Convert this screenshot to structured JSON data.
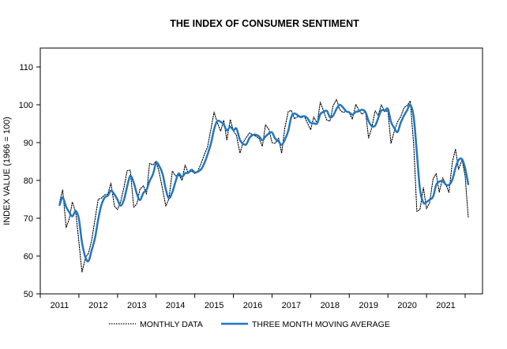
{
  "chart_data": {
    "type": "line",
    "title": "THE INDEX OF CONSUMER SENTIMENT",
    "ylabel": "INDEX VALUE (1966 = 100)",
    "xlabel": "",
    "ylim": [
      50,
      115
    ],
    "xlim": [
      2010.5,
      2021.95
    ],
    "yticks": [
      50,
      60,
      70,
      80,
      90,
      100,
      110
    ],
    "xticks": [
      "2011",
      "2012",
      "2013",
      "2014",
      "2015",
      "2016",
      "2017",
      "2018",
      "2019",
      "2020",
      "2021"
    ],
    "grid": false,
    "legend_position": "bottom",
    "series": [
      {
        "name": "MONTHLY DATA",
        "style": "dotted",
        "color": "#000000",
        "x": [
          2011.0,
          2011.08,
          2011.17,
          2011.25,
          2011.33,
          2011.42,
          2011.5,
          2011.58,
          2011.67,
          2011.75,
          2011.83,
          2011.92,
          2012.0,
          2012.08,
          2012.17,
          2012.25,
          2012.33,
          2012.42,
          2012.5,
          2012.58,
          2012.67,
          2012.75,
          2012.83,
          2012.92,
          2013.0,
          2013.08,
          2013.17,
          2013.25,
          2013.33,
          2013.42,
          2013.5,
          2013.58,
          2013.67,
          2013.75,
          2013.83,
          2013.92,
          2014.0,
          2014.08,
          2014.17,
          2014.25,
          2014.33,
          2014.42,
          2014.5,
          2014.58,
          2014.67,
          2014.75,
          2014.83,
          2014.92,
          2015.0,
          2015.08,
          2015.17,
          2015.25,
          2015.33,
          2015.42,
          2015.5,
          2015.58,
          2015.67,
          2015.75,
          2015.83,
          2015.92,
          2016.0,
          2016.08,
          2016.17,
          2016.25,
          2016.33,
          2016.42,
          2016.5,
          2016.58,
          2016.67,
          2016.75,
          2016.83,
          2016.92,
          2017.0,
          2017.08,
          2017.17,
          2017.25,
          2017.33,
          2017.42,
          2017.5,
          2017.58,
          2017.67,
          2017.75,
          2017.83,
          2017.92,
          2018.0,
          2018.08,
          2018.17,
          2018.25,
          2018.33,
          2018.42,
          2018.5,
          2018.58,
          2018.67,
          2018.75,
          2018.83,
          2018.92,
          2019.0,
          2019.08,
          2019.17,
          2019.25,
          2019.33,
          2019.42,
          2019.5,
          2019.58,
          2019.67,
          2019.75,
          2019.83,
          2019.92,
          2020.0,
          2020.08,
          2020.17,
          2020.25,
          2020.33,
          2020.42,
          2020.5,
          2020.58,
          2020.67,
          2020.75,
          2020.83,
          2020.92,
          2021.0,
          2021.08,
          2021.17,
          2021.25,
          2021.33,
          2021.42,
          2021.5,
          2021.58
        ],
        "values": [
          74.2,
          77.5,
          67.5,
          69.8,
          74.3,
          71.5,
          63.7,
          55.7,
          59.5,
          60.8,
          64.1,
          69.9,
          75.0,
          75.3,
          76.2,
          76.4,
          79.3,
          73.2,
          72.3,
          74.3,
          78.3,
          82.6,
          82.7,
          72.9,
          73.8,
          77.6,
          78.6,
          76.4,
          84.5,
          84.1,
          85.1,
          82.1,
          77.5,
          73.2,
          75.1,
          82.5,
          81.2,
          81.6,
          80.0,
          84.1,
          81.9,
          82.5,
          81.8,
          82.5,
          84.6,
          86.9,
          88.8,
          93.6,
          98.1,
          95.4,
          93.0,
          95.9,
          90.7,
          96.1,
          93.1,
          91.9,
          87.2,
          90.0,
          91.3,
          92.6,
          92.0,
          91.7,
          91.0,
          89.0,
          94.7,
          93.5,
          90.0,
          89.8,
          91.2,
          87.2,
          93.8,
          98.2,
          98.5,
          96.3,
          96.9,
          97.0,
          97.1,
          95.1,
          93.4,
          96.8,
          95.1,
          100.7,
          98.5,
          95.9,
          95.7,
          99.7,
          101.4,
          98.8,
          98.0,
          98.2,
          97.9,
          96.2,
          100.1,
          98.6,
          97.5,
          98.3,
          91.2,
          93.8,
          98.4,
          97.2,
          100.0,
          98.2,
          98.4,
          89.8,
          93.2,
          95.5,
          96.8,
          99.3,
          99.8,
          101.0,
          89.1,
          71.8,
          72.3,
          78.1,
          72.5,
          74.1,
          80.4,
          81.8,
          76.9,
          80.7,
          79.0,
          76.8,
          84.9,
          88.3,
          82.9,
          85.5,
          81.2,
          70.3
        ]
      },
      {
        "name": "THREE MONTH MOVING AVERAGE",
        "style": "solid",
        "color": "#1f77c4",
        "x": [
          2011.0,
          2011.08,
          2011.17,
          2011.25,
          2011.33,
          2011.42,
          2011.5,
          2011.58,
          2011.67,
          2011.75,
          2011.83,
          2011.92,
          2012.0,
          2012.08,
          2012.17,
          2012.25,
          2012.33,
          2012.42,
          2012.5,
          2012.58,
          2012.67,
          2012.75,
          2012.83,
          2012.92,
          2013.0,
          2013.08,
          2013.17,
          2013.25,
          2013.33,
          2013.42,
          2013.5,
          2013.58,
          2013.67,
          2013.75,
          2013.83,
          2013.92,
          2014.0,
          2014.08,
          2014.17,
          2014.25,
          2014.33,
          2014.42,
          2014.5,
          2014.58,
          2014.67,
          2014.75,
          2014.83,
          2014.92,
          2015.0,
          2015.08,
          2015.17,
          2015.25,
          2015.33,
          2015.42,
          2015.5,
          2015.58,
          2015.67,
          2015.75,
          2015.83,
          2015.92,
          2016.0,
          2016.08,
          2016.17,
          2016.25,
          2016.33,
          2016.42,
          2016.5,
          2016.58,
          2016.67,
          2016.75,
          2016.83,
          2016.92,
          2017.0,
          2017.08,
          2017.17,
          2017.25,
          2017.33,
          2017.42,
          2017.5,
          2017.58,
          2017.67,
          2017.75,
          2017.83,
          2017.92,
          2018.0,
          2018.08,
          2018.17,
          2018.25,
          2018.33,
          2018.42,
          2018.5,
          2018.58,
          2018.67,
          2018.75,
          2018.83,
          2018.92,
          2019.0,
          2019.08,
          2019.17,
          2019.25,
          2019.33,
          2019.42,
          2019.5,
          2019.58,
          2019.67,
          2019.75,
          2019.83,
          2019.92,
          2020.0,
          2020.08,
          2020.17,
          2020.25,
          2020.33,
          2020.42,
          2020.5,
          2020.58,
          2020.67,
          2020.75,
          2020.83,
          2020.92,
          2021.0,
          2021.08,
          2021.17,
          2021.25,
          2021.33,
          2021.42,
          2021.5,
          2021.58
        ],
        "values": [
          73.5,
          75.5,
          73.0,
          71.6,
          70.5,
          71.9,
          69.8,
          63.6,
          59.6,
          58.7,
          61.5,
          64.9,
          69.7,
          73.4,
          75.5,
          76.0,
          77.3,
          76.3,
          74.9,
          73.3,
          75.0,
          78.4,
          81.2,
          79.4,
          76.5,
          74.8,
          76.7,
          77.5,
          79.8,
          81.7,
          84.6,
          83.8,
          81.6,
          77.6,
          75.3,
          76.9,
          79.6,
          81.8,
          80.9,
          81.9,
          82.0,
          82.8,
          82.1,
          82.3,
          83.0,
          84.6,
          86.8,
          89.8,
          93.5,
          95.7,
          95.5,
          94.8,
          93.2,
          94.2,
          93.3,
          93.7,
          90.7,
          89.7,
          89.5,
          91.3,
          92.0,
          92.1,
          91.6,
          90.6,
          91.6,
          92.4,
          92.7,
          91.1,
          90.3,
          89.4,
          90.7,
          93.1,
          96.8,
          97.7,
          97.2,
          96.7,
          97.0,
          96.4,
          95.2,
          95.1,
          95.1,
          97.5,
          98.1,
          98.4,
          96.7,
          97.1,
          98.9,
          100.0,
          99.4,
          98.3,
          98.0,
          97.4,
          98.1,
          98.3,
          98.7,
          98.1,
          95.7,
          94.4,
          94.5,
          96.5,
          98.5,
          98.5,
          98.9,
          95.5,
          93.8,
          92.8,
          95.2,
          97.2,
          98.6,
          100.0,
          96.6,
          87.3,
          77.7,
          74.1,
          74.3,
          74.9,
          75.7,
          78.8,
          79.7,
          79.8,
          78.9,
          78.8,
          80.2,
          83.3,
          85.4,
          85.6,
          83.2,
          79.0
        ]
      }
    ]
  }
}
